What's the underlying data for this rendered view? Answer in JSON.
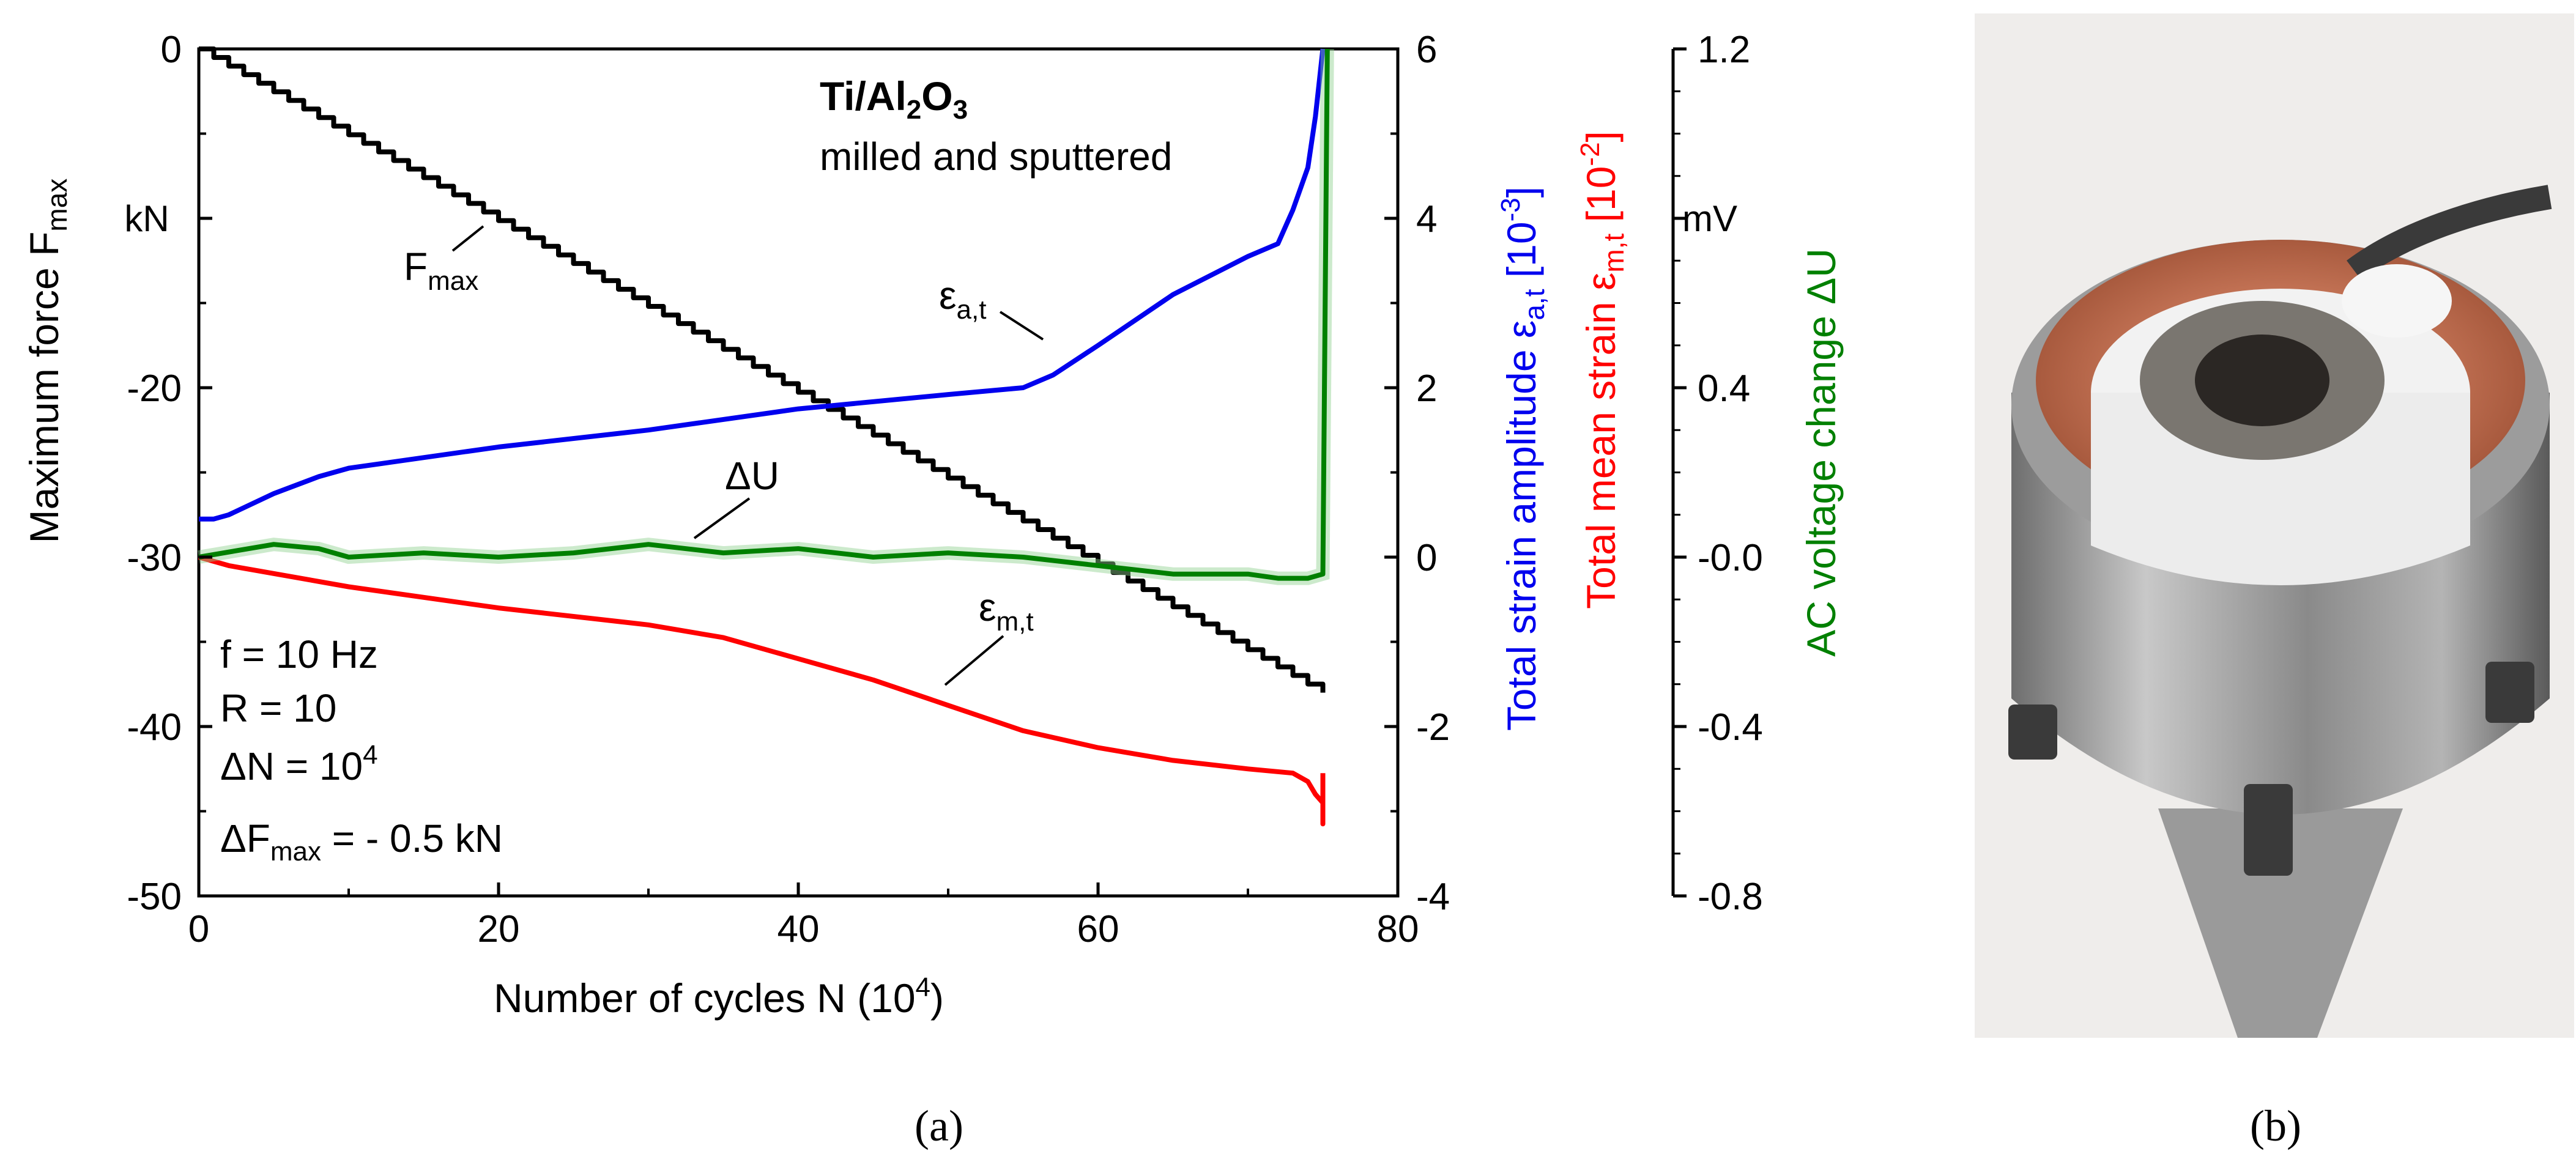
{
  "panels": {
    "a": "(a)",
    "b": "(b)"
  },
  "chart_data": {
    "type": "line",
    "title": "Ti/Al2O3",
    "subtitle": "milled and sputtered",
    "xlabel": "Number of cycles N (10^4)",
    "xlim": [
      0,
      80
    ],
    "xticks": [
      0,
      20,
      40,
      60,
      80
    ],
    "axes": {
      "left": {
        "label": "Maximum force F_max",
        "unit": "kN",
        "lim": [
          -50,
          0
        ],
        "ticks": [
          "0",
          "-10",
          "-20",
          "-30",
          "-40",
          "-50"
        ],
        "tick_values": [
          0,
          -10,
          -20,
          -30,
          -40,
          -50
        ]
      },
      "right1": {
        "label_blue": "Total strain amplitude ε_a,t [10^-3]",
        "label_red": "Total mean strain ε_m,t [10^-2]",
        "lim": [
          -4,
          6
        ],
        "ticks": [
          "6",
          "4",
          "2",
          "0",
          "-2",
          "-4"
        ],
        "tick_values": [
          6,
          4,
          2,
          0,
          -2,
          -4
        ]
      },
      "right2": {
        "label": "AC voltage change ΔU",
        "unit": "mV",
        "lim": [
          -0.8,
          1.2
        ],
        "ticks": [
          "1.2",
          "0.8",
          "0.4",
          "-0.0",
          "-0.4",
          "-0.8"
        ],
        "tick_values": [
          1.2,
          0.8,
          0.4,
          0.0,
          -0.4,
          -0.8
        ]
      }
    },
    "grid": false,
    "annotations": [
      {
        "label": "F_max",
        "series": "F_max"
      },
      {
        "label": "ε_a,t",
        "series": "epsilon_a_t"
      },
      {
        "label": "ΔU",
        "series": "delta_U"
      },
      {
        "label": "ε_m,t",
        "series": "epsilon_m_t"
      }
    ],
    "parameters": [
      "f = 10 Hz",
      "R = 10",
      "ΔN = 10^4",
      "ΔF_max = - 0.5 kN"
    ],
    "series": [
      {
        "id": "F_max",
        "axis": "left",
        "color": "#000000",
        "step": true,
        "x": [
          0,
          75
        ],
        "values": [
          0,
          -38
        ]
      },
      {
        "id": "epsilon_a_t",
        "axis": "right1",
        "color": "#0000ee",
        "x": [
          0,
          1,
          2,
          5,
          8,
          10,
          20,
          30,
          40,
          50,
          55,
          57,
          60,
          65,
          70,
          72,
          73,
          74,
          74.5,
          75
        ],
        "values": [
          0.45,
          0.45,
          0.5,
          0.75,
          0.95,
          1.05,
          1.3,
          1.5,
          1.75,
          1.92,
          2.0,
          2.15,
          2.5,
          3.1,
          3.55,
          3.7,
          4.1,
          4.6,
          5.2,
          6.0
        ]
      },
      {
        "id": "epsilon_m_t",
        "axis": "right1",
        "color": "#ff0000",
        "x": [
          0,
          2,
          10,
          20,
          30,
          35,
          40,
          45,
          50,
          55,
          60,
          65,
          70,
          73,
          74,
          74.5,
          75,
          75,
          75
        ],
        "values": [
          0.0,
          -0.1,
          -0.35,
          -0.6,
          -0.8,
          -0.95,
          -1.2,
          -1.45,
          -1.75,
          -2.05,
          -2.25,
          -2.4,
          -2.5,
          -2.55,
          -2.65,
          -2.8,
          -2.9,
          -3.15,
          -2.55
        ]
      },
      {
        "id": "delta_U",
        "axis": "right2",
        "color": "#008000",
        "x": [
          0,
          5,
          8,
          10,
          15,
          20,
          25,
          30,
          35,
          40,
          45,
          50,
          55,
          60,
          65,
          70,
          72,
          74,
          75,
          75.3
        ],
        "values": [
          0.0,
          0.03,
          0.02,
          0.0,
          0.01,
          0.0,
          0.01,
          0.03,
          0.01,
          0.02,
          0.0,
          0.01,
          0.0,
          -0.02,
          -0.04,
          -0.04,
          -0.05,
          -0.05,
          -0.04,
          1.2
        ]
      }
    ]
  }
}
